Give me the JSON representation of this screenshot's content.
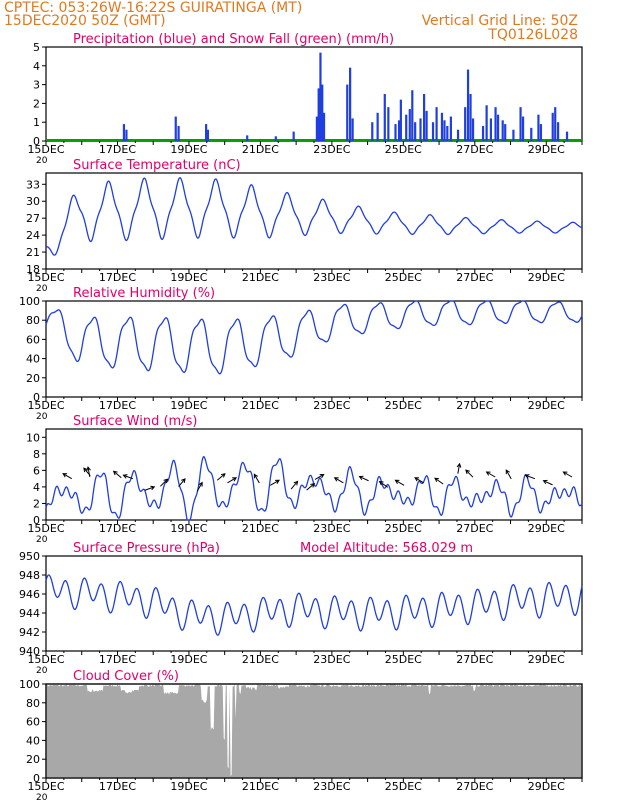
{
  "header": {
    "line1": "CPTEC:   053:26W-16:22S   GUIRATINGA (MT)",
    "line2": "15DEC2020 50Z (GMT)",
    "grid_note": "Vertical Grid Line: 50Z",
    "run_id": "TQ0126L028"
  },
  "colors": {
    "header": "#e07a1f",
    "title": "#e0006a",
    "line": "#1f3fe0",
    "snow": "#00a000",
    "cloud": "#a8a8a8",
    "axis": "#000000"
  },
  "x_axis": {
    "ticks": [
      "15DEC",
      "17DEC",
      "19DEC",
      "21DEC",
      "23DEC",
      "25DEC",
      "27DEC",
      "29DEC"
    ],
    "year_fragment": "20",
    "days": 15
  },
  "chart_data": [
    {
      "type": "bar",
      "title": "Precipitation (blue) and Snow Fall (green) (mm/h)",
      "ylim": [
        0,
        5
      ],
      "yticks": [
        0,
        1,
        2,
        3,
        4,
        5
      ],
      "bars": [
        [
          2.15,
          0.9
        ],
        [
          2.22,
          0.6
        ],
        [
          3.6,
          1.3
        ],
        [
          3.68,
          0.8
        ],
        [
          4.45,
          0.9
        ],
        [
          4.5,
          0.6
        ],
        [
          5.6,
          0.3
        ],
        [
          6.4,
          0.25
        ],
        [
          6.9,
          0.5
        ],
        [
          7.55,
          1.3
        ],
        [
          7.6,
          2.8
        ],
        [
          7.65,
          4.7
        ],
        [
          7.7,
          3.0
        ],
        [
          7.75,
          1.5
        ],
        [
          8.4,
          3.0
        ],
        [
          8.48,
          3.9
        ],
        [
          8.55,
          1.2
        ],
        [
          9.1,
          1.0
        ],
        [
          9.25,
          1.5
        ],
        [
          9.45,
          2.5
        ],
        [
          9.55,
          1.8
        ],
        [
          9.75,
          0.9
        ],
        [
          9.85,
          1.1
        ],
        [
          9.9,
          2.2
        ],
        [
          10.05,
          1.4
        ],
        [
          10.15,
          1.7
        ],
        [
          10.22,
          2.7
        ],
        [
          10.3,
          1.0
        ],
        [
          10.45,
          1.2
        ],
        [
          10.55,
          2.5
        ],
        [
          10.62,
          1.6
        ],
        [
          10.8,
          1.0
        ],
        [
          10.9,
          1.8
        ],
        [
          11.05,
          1.5
        ],
        [
          11.12,
          1.1
        ],
        [
          11.2,
          0.8
        ],
        [
          11.3,
          1.3
        ],
        [
          11.5,
          0.6
        ],
        [
          11.7,
          1.8
        ],
        [
          11.78,
          3.8
        ],
        [
          11.85,
          2.5
        ],
        [
          11.92,
          1.2
        ],
        [
          12.2,
          0.8
        ],
        [
          12.3,
          1.9
        ],
        [
          12.42,
          1.2
        ],
        [
          12.55,
          1.8
        ],
        [
          12.62,
          1.4
        ],
        [
          12.75,
          1.1
        ],
        [
          12.82,
          0.9
        ],
        [
          13.05,
          0.6
        ],
        [
          13.25,
          1.8
        ],
        [
          13.32,
          1.3
        ],
        [
          13.55,
          0.7
        ],
        [
          13.75,
          1.4
        ],
        [
          13.82,
          0.9
        ],
        [
          14.15,
          1.5
        ],
        [
          14.22,
          1.8
        ],
        [
          14.3,
          1.0
        ],
        [
          14.55,
          0.5
        ]
      ]
    },
    {
      "type": "line",
      "title": "Surface Temperature (nC)",
      "ylim": [
        18,
        35
      ],
      "yticks": [
        18,
        21,
        24,
        27,
        30,
        33
      ],
      "mean": 27.2,
      "series_mean": [
        [
          0,
          22
        ],
        [
          1,
          28
        ],
        [
          3,
          28.7
        ],
        [
          4,
          28.8
        ],
        [
          5,
          28.7
        ],
        [
          6,
          28
        ],
        [
          7,
          27.5
        ],
        [
          8,
          27.2
        ],
        [
          9,
          26.5
        ],
        [
          10,
          26
        ],
        [
          11,
          25.8
        ],
        [
          12,
          25.6
        ],
        [
          13,
          25.5
        ],
        [
          14,
          25.4
        ],
        [
          15,
          25.3
        ]
      ],
      "amplitude": [
        [
          0,
          2
        ],
        [
          1,
          4.5
        ],
        [
          3,
          4.8
        ],
        [
          5,
          4.5
        ],
        [
          6,
          4
        ],
        [
          7,
          3.2
        ],
        [
          8,
          2.5
        ],
        [
          9,
          2
        ],
        [
          10,
          1.6
        ],
        [
          11,
          1.5
        ],
        [
          12,
          1.2
        ],
        [
          13,
          1
        ],
        [
          15,
          0.8
        ]
      ],
      "peak_hour_fraction": 0.75
    },
    {
      "type": "line",
      "title": "Relative Humidity (%)",
      "ylim": [
        0,
        100
      ],
      "yticks": [
        0,
        20,
        40,
        60,
        80,
        100
      ],
      "series_mean": [
        [
          0,
          80
        ],
        [
          1,
          58
        ],
        [
          3,
          55
        ],
        [
          5,
          52
        ],
        [
          6,
          58
        ],
        [
          7,
          65
        ],
        [
          8,
          78
        ],
        [
          9,
          82
        ],
        [
          10,
          86
        ],
        [
          11,
          88
        ],
        [
          12,
          88
        ],
        [
          13,
          89
        ],
        [
          15,
          88
        ]
      ],
      "amplitude": [
        [
          0,
          15
        ],
        [
          1,
          25
        ],
        [
          3,
          28
        ],
        [
          5,
          28
        ],
        [
          6,
          25
        ],
        [
          7,
          22
        ],
        [
          8,
          18
        ],
        [
          9,
          15
        ],
        [
          10,
          14
        ],
        [
          11,
          13
        ],
        [
          13,
          12
        ],
        [
          15,
          10
        ]
      ],
      "peak_hour_fraction": 0.3
    },
    {
      "type": "line",
      "title": "Surface Wind (m/s)",
      "ylim": [
        0,
        11
      ],
      "yticks": [
        0,
        2,
        4,
        6,
        8,
        10
      ],
      "series_mean": [
        [
          0,
          2.5
        ],
        [
          3,
          3.5
        ],
        [
          5,
          4
        ],
        [
          6,
          4.2
        ],
        [
          7,
          4
        ],
        [
          8,
          3.5
        ],
        [
          10,
          3.2
        ],
        [
          12,
          3
        ],
        [
          15,
          2.8
        ]
      ],
      "amplitude": [
        [
          0,
          1.5
        ],
        [
          3,
          2.5
        ],
        [
          5,
          3
        ],
        [
          6,
          2.8
        ],
        [
          7,
          2
        ],
        [
          9,
          1.5
        ],
        [
          15,
          1.2
        ]
      ],
      "peak_hour_fraction": 0.5,
      "arrows": [
        [
          0.6,
          5.3,
          150
        ],
        [
          1.15,
          5.8,
          130
        ],
        [
          1.2,
          5.8,
          100
        ],
        [
          2.0,
          5.5,
          140
        ],
        [
          2.3,
          5.2,
          160
        ],
        [
          2.9,
          3.8,
          20
        ],
        [
          3.3,
          4.5,
          45
        ],
        [
          3.8,
          4.5,
          50
        ],
        [
          4.3,
          4.0,
          60
        ],
        [
          4.9,
          5.2,
          40
        ],
        [
          5.2,
          4.8,
          30
        ],
        [
          5.9,
          5.0,
          120
        ],
        [
          6.4,
          4.5,
          30
        ],
        [
          6.95,
          4.2,
          50
        ],
        [
          7.4,
          4.0,
          40
        ],
        [
          7.65,
          5.2,
          30
        ],
        [
          8.2,
          4.8,
          150
        ],
        [
          8.9,
          5.0,
          155
        ],
        [
          9.45,
          4.3,
          145
        ],
        [
          9.9,
          4.5,
          150
        ],
        [
          10.45,
          4.8,
          150
        ],
        [
          11.0,
          4.7,
          145
        ],
        [
          11.55,
          6.2,
          80
        ],
        [
          11.85,
          5.6,
          135
        ],
        [
          12.45,
          5.5,
          150
        ],
        [
          12.95,
          5.5,
          120
        ],
        [
          13.55,
          5.2,
          160
        ],
        [
          14.05,
          4.5,
          155
        ],
        [
          14.6,
          5.5,
          150
        ]
      ]
    },
    {
      "type": "line",
      "title": "Surface Pressure (hPa)",
      "model_altitude_label": "Model Altitude: 568.029 m",
      "ylim": [
        940,
        950
      ],
      "yticks": [
        940,
        942,
        944,
        946,
        948,
        950
      ],
      "series_mean": [
        [
          0,
          946.5
        ],
        [
          2,
          945.8
        ],
        [
          3,
          945.2
        ],
        [
          4,
          943.8
        ],
        [
          5,
          943.5
        ],
        [
          6,
          944
        ],
        [
          7,
          944.5
        ],
        [
          8,
          944.2
        ],
        [
          9,
          944
        ],
        [
          10,
          944.2
        ],
        [
          11,
          944.5
        ],
        [
          12,
          944.8
        ],
        [
          13,
          945.3
        ],
        [
          14,
          945.5
        ],
        [
          15,
          945.8
        ]
      ],
      "amplitude": [
        [
          0,
          1.6
        ],
        [
          15,
          1.8
        ]
      ],
      "peak_hour_fraction": 0.45
    },
    {
      "type": "area",
      "title": "Cloud Cover (%)",
      "ylim": [
        0,
        100
      ],
      "yticks": [
        0,
        20,
        40,
        60,
        80,
        100
      ],
      "dips": [
        [
          1.15,
          1.6,
          91
        ],
        [
          2.1,
          2.6,
          90
        ],
        [
          3.3,
          3.7,
          88
        ],
        [
          4.35,
          4.5,
          80
        ],
        [
          4.6,
          4.7,
          50
        ],
        [
          4.95,
          5.0,
          40
        ],
        [
          5.07,
          5.12,
          10
        ],
        [
          5.16,
          5.2,
          2
        ],
        [
          5.28,
          5.33,
          60
        ],
        [
          5.4,
          5.45,
          88
        ],
        [
          5.6,
          5.9,
          93
        ],
        [
          6.5,
          6.8,
          95
        ],
        [
          7.2,
          7.4,
          96
        ],
        [
          8.3,
          8.6,
          97
        ],
        [
          10.7,
          10.75,
          88
        ],
        [
          11.95,
          12.0,
          89
        ]
      ]
    }
  ]
}
